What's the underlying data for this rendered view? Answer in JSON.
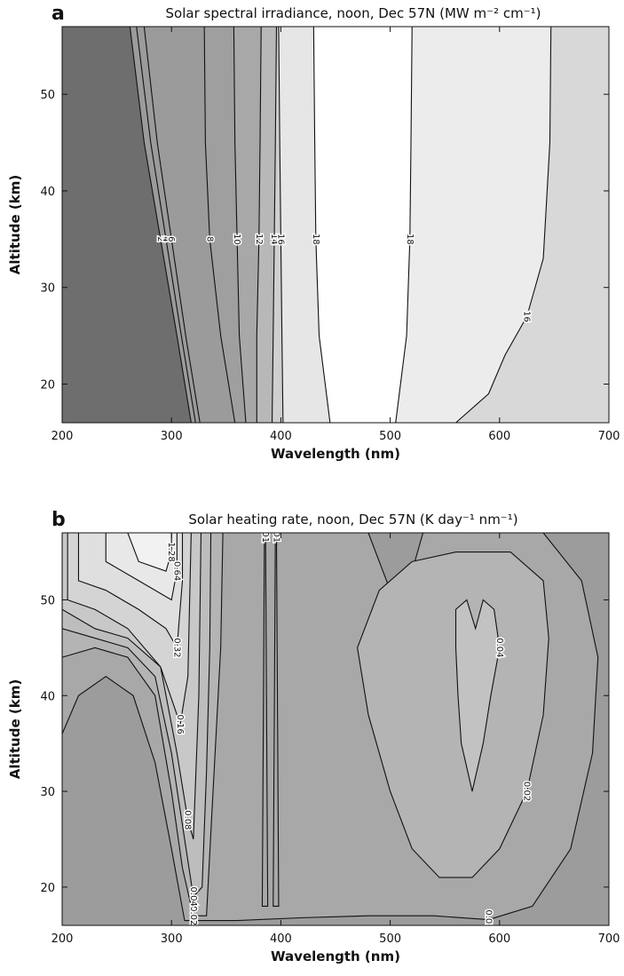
{
  "chart_data": [
    {
      "type": "contour",
      "panel": "a",
      "title": "Solar spectral irradiance, noon, Dec 57N (MW m⁻² cm⁻¹)",
      "xlabel": "Wavelength (nm)",
      "ylabel": "Altitude (km)",
      "xlim": [
        200,
        700
      ],
      "ylim": [
        16,
        57
      ],
      "xticks": [
        200,
        300,
        400,
        500,
        600,
        700
      ],
      "yticks": [
        20,
        30,
        40,
        50
      ],
      "background": "#6e6e6e",
      "closed": false,
      "contours": [
        {
          "level": 2,
          "fill": "#9b9b9b",
          "x": [
            318,
            305,
            290,
            275,
            262
          ],
          "y": [
            16,
            25,
            35,
            45,
            57
          ]
        },
        {
          "level": 4,
          "fill": "#9b9b9b",
          "x": [
            322,
            309,
            295,
            281,
            268
          ],
          "y": [
            16,
            25,
            35,
            45,
            57
          ]
        },
        {
          "level": 6,
          "fill": "#9b9b9b",
          "x": [
            326,
            313,
            300,
            287,
            275
          ],
          "y": [
            16,
            25,
            35,
            45,
            57
          ]
        },
        {
          "level": 8,
          "fill": "#9f9f9f",
          "x": [
            358,
            345,
            335,
            331,
            330
          ],
          "y": [
            16,
            25,
            35,
            45,
            57
          ]
        },
        {
          "level": 10,
          "fill": "#a8a8a8",
          "x": [
            368,
            362,
            360,
            358,
            357
          ],
          "y": [
            16,
            25,
            35,
            45,
            57
          ]
        },
        {
          "level": 12,
          "fill": "#b8b8b8",
          "x": [
            378,
            378,
            380,
            381,
            382
          ],
          "y": [
            16,
            25,
            35,
            45,
            57
          ]
        },
        {
          "level": 14,
          "fill": "#cfcfcf",
          "x": [
            392,
            393,
            394,
            395,
            396
          ],
          "y": [
            16,
            25,
            35,
            45,
            57
          ]
        },
        {
          "level": 16,
          "fill": "#e6e6e6",
          "x": [
            402,
            401,
            400,
            399,
            398
          ],
          "y": [
            16,
            25,
            35,
            45,
            57
          ]
        },
        {
          "level": 18,
          "fill": "#ffffff",
          "x": [
            445,
            435,
            432,
            431,
            430
          ],
          "y": [
            16,
            25,
            35,
            45,
            57
          ]
        },
        {
          "level": 18,
          "fill": "#ececec",
          "x": [
            505,
            515,
            518,
            519,
            520
          ],
          "y": [
            16,
            25,
            35,
            45,
            57
          ]
        },
        {
          "level": 16,
          "fill": "#d8d8d8",
          "x": [
            560,
            590,
            605,
            625,
            640,
            646,
            647
          ],
          "y": [
            16,
            19,
            23,
            27,
            33,
            45,
            57
          ]
        }
      ]
    },
    {
      "type": "contour",
      "panel": "b",
      "title": "Solar heating rate, noon, Dec 57N (K day⁻¹ nm⁻¹)",
      "xlabel": "Wavelength (nm)",
      "ylabel": "Altitude (km)",
      "xlim": [
        200,
        700
      ],
      "ylim": [
        16,
        57
      ],
      "xticks": [
        200,
        300,
        400,
        500,
        600,
        700
      ],
      "yticks": [
        20,
        30,
        40,
        50
      ],
      "background": "#9c9c9c",
      "closed": true,
      "contours": [
        {
          "level": 0.01,
          "fill": "#a8a8a8",
          "x": [
            200,
            215,
            240,
            265,
            285,
            300,
            312,
            330,
            360,
            420,
            480,
            540,
            590,
            630,
            665,
            685,
            690,
            675,
            640,
            530,
            520,
            500,
            480,
            200
          ],
          "y": [
            36,
            40,
            42,
            40,
            33,
            24,
            16.5,
            16.5,
            16.5,
            16.8,
            17,
            17,
            16.6,
            18,
            24,
            34,
            44,
            52,
            57,
            57,
            53,
            51,
            57,
            57
          ]
        },
        {
          "level": 0.02,
          "fill": "#b4b4b4",
          "x": [
            470,
            480,
            500,
            520,
            545,
            575,
            600,
            625,
            640,
            645,
            640,
            610,
            560,
            520,
            490
          ],
          "y": [
            45,
            38,
            30,
            24,
            21,
            21,
            24,
            30,
            38,
            46,
            52,
            55,
            55,
            54,
            51
          ]
        },
        {
          "level": 0.04,
          "fill": "#c2c2c2",
          "x": [
            560,
            562,
            565,
            575,
            585,
            592,
            600,
            595,
            585,
            578,
            570,
            560
          ],
          "y": [
            45,
            40,
            35,
            30,
            35,
            40,
            45,
            49,
            50,
            47,
            50,
            49
          ]
        },
        {
          "level": 0.02,
          "fill": "#b4b4b4",
          "x": [
            200,
            230,
            260,
            285,
            300,
            310,
            320,
            332,
            338,
            345,
            347,
            200
          ],
          "y": [
            44,
            45,
            44,
            40,
            30,
            22,
            17,
            17,
            30,
            45,
            57,
            57
          ]
        },
        {
          "level": 0.04,
          "fill": "#bdbdbd",
          "x": [
            200,
            230,
            260,
            285,
            300,
            312,
            320,
            328,
            332,
            335,
            336,
            200
          ],
          "y": [
            47,
            46,
            45,
            42,
            34,
            25,
            19,
            20,
            32,
            45,
            57,
            57
          ]
        },
        {
          "level": 0.08,
          "fill": "#c8c8c8",
          "x": [
            200,
            230,
            260,
            290,
            305,
            315,
            320,
            325,
            327,
            200
          ],
          "y": [
            49,
            47,
            46,
            43,
            34,
            27,
            25,
            40,
            57,
            57
          ]
        },
        {
          "level": 0.16,
          "fill": "#d4d4d4",
          "x": [
            205,
            230,
            260,
            290,
            308,
            315,
            318,
            205
          ],
          "y": [
            50,
            49,
            47,
            43,
            37,
            42,
            57,
            57
          ]
        },
        {
          "level": 0.32,
          "fill": "#dfdfdf",
          "x": [
            215,
            240,
            270,
            295,
            305,
            310,
            310,
            215
          ],
          "y": [
            52,
            51,
            49,
            47,
            45,
            52,
            57,
            57
          ]
        },
        {
          "level": 0.64,
          "fill": "#e8e8e8",
          "x": [
            240,
            270,
            300,
            305,
            305,
            240
          ],
          "y": [
            54,
            52,
            50,
            53,
            57,
            57
          ]
        },
        {
          "level": 1.28,
          "fill": "#f2f2f2",
          "x": [
            260,
            270,
            295,
            300,
            300,
            260
          ],
          "y": [
            57,
            54,
            53,
            55,
            57,
            57
          ]
        },
        {
          "level": 0.01,
          "fill": "#a8a8a8",
          "x": [
            383,
            385,
            386,
            388
          ],
          "y": [
            18,
            57,
            57,
            18
          ]
        },
        {
          "level": 0.01,
          "fill": "#a8a8a8",
          "x": [
            393,
            395,
            396,
            398
          ],
          "y": [
            18,
            57,
            57,
            18
          ]
        }
      ]
    }
  ]
}
